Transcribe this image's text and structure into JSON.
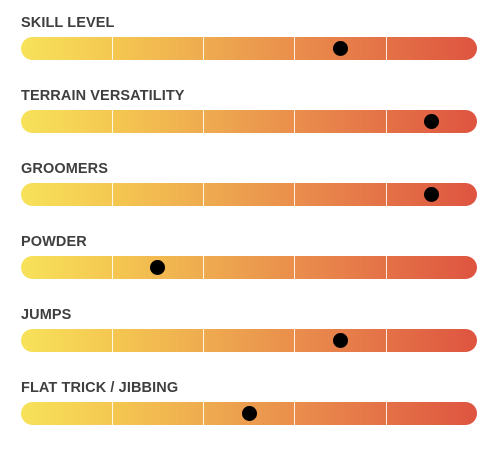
{
  "ratings": [
    {
      "label": "SKILL LEVEL",
      "value": 0.7
    },
    {
      "label": "TERRAIN VERSATILITY",
      "value": 0.9
    },
    {
      "label": "GROOMERS",
      "value": 0.9
    },
    {
      "label": "POWDER",
      "value": 0.3
    },
    {
      "label": "JUMPS",
      "value": 0.7
    },
    {
      "label": "FLAT TRICK / JIBBING",
      "value": 0.5
    }
  ],
  "scale_segments": 5,
  "colors": {
    "gradient_start": "#f7e25a",
    "gradient_mid": "#eda44f",
    "gradient_end": "#de5440",
    "marker": "#000000",
    "label": "#3f3f3f"
  }
}
